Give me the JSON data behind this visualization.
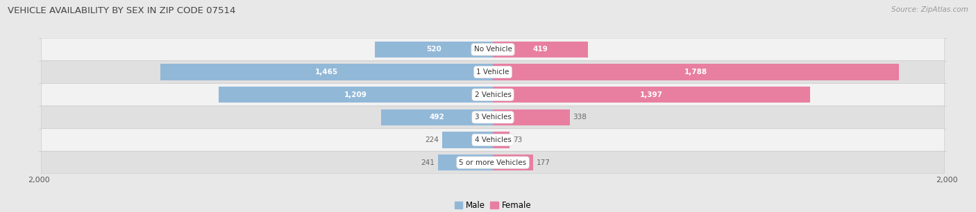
{
  "title": "VEHICLE AVAILABILITY BY SEX IN ZIP CODE 07514",
  "source": "Source: ZipAtlas.com",
  "categories": [
    "No Vehicle",
    "1 Vehicle",
    "2 Vehicles",
    "3 Vehicles",
    "4 Vehicles",
    "5 or more Vehicles"
  ],
  "male_values": [
    520,
    1465,
    1209,
    492,
    224,
    241
  ],
  "female_values": [
    419,
    1788,
    1397,
    338,
    73,
    177
  ],
  "male_color": "#92b8d8",
  "female_color": "#e87fa0",
  "male_label_color_1": "#92b8d8",
  "female_label_color_1": "#e87fa0",
  "male_label": "Male",
  "female_label": "Female",
  "bg_color": "#e8e8e8",
  "row_bg_colors": [
    "#f2f2f2",
    "#e0e0e0"
  ],
  "label_white": "#ffffff",
  "label_dark": "#666666",
  "center_text_color": "#333333",
  "xlim": 2000,
  "white_threshold": 400,
  "title_fontsize": 9.5,
  "source_fontsize": 7.5,
  "bar_label_fontsize": 7.5,
  "cat_label_fontsize": 7.5,
  "axis_label_fontsize": 8
}
